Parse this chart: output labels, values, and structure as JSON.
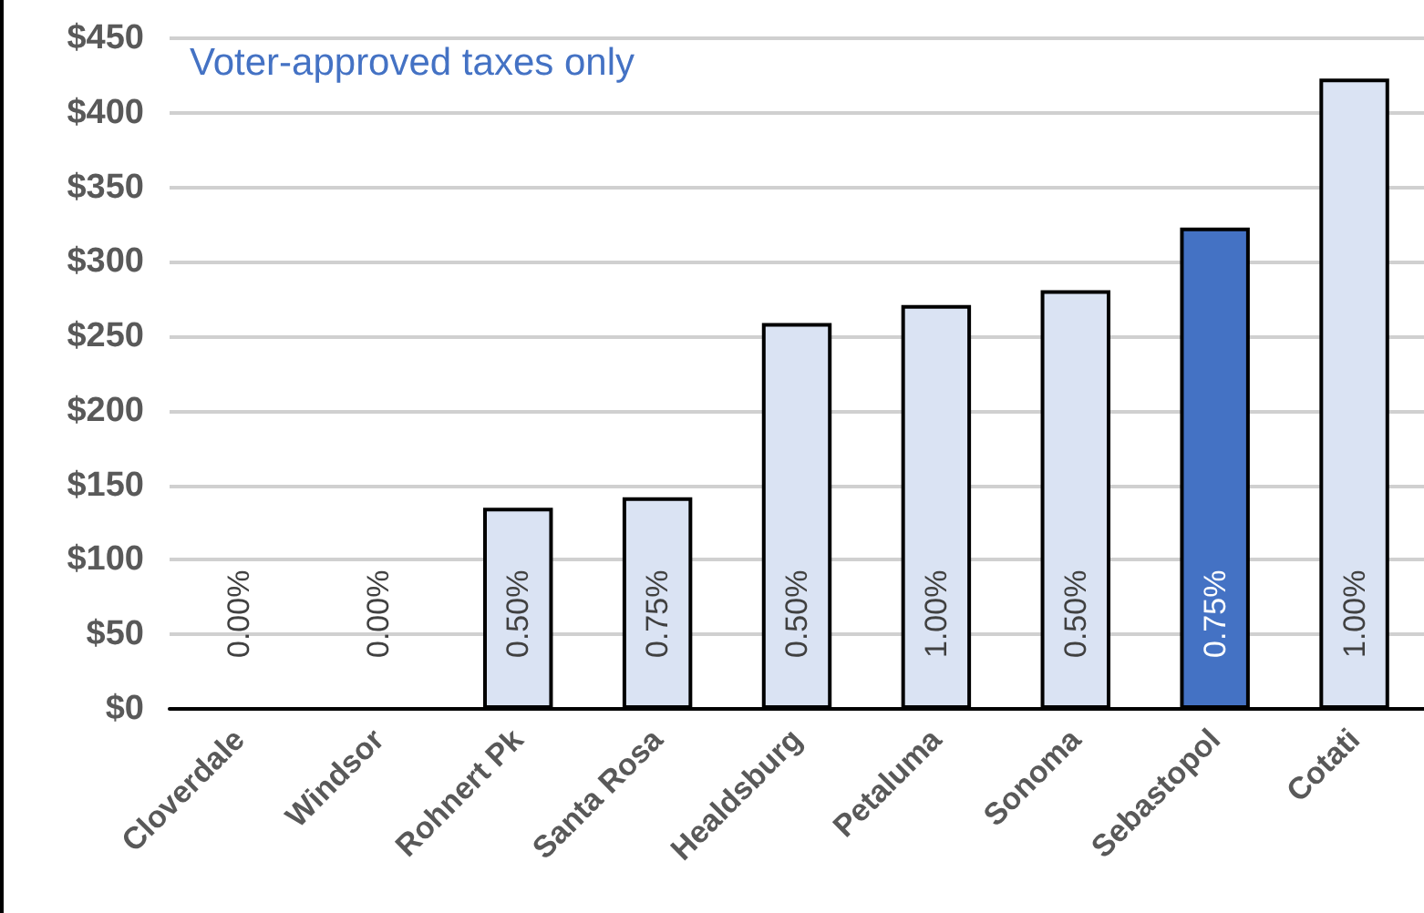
{
  "chart_data": {
    "type": "bar",
    "categories": [
      "Cloverdale",
      "Windsor",
      "Rohnert Pk",
      "Santa Rosa",
      "Healdsburg",
      "Petaluma",
      "Sonoma",
      "Sebastopol",
      "Cotati"
    ],
    "values": [
      0,
      0,
      135,
      142,
      259,
      271,
      281,
      323,
      423
    ],
    "colors": [
      "#dae3f3",
      "#dae3f3",
      "#dae3f3",
      "#dae3f3",
      "#dae3f3",
      "#dae3f3",
      "#dae3f3",
      "#4472c4",
      "#dae3f3"
    ],
    "ylim": [
      0,
      450
    ],
    "yticks": [
      {
        "value": 0,
        "label": "$0"
      },
      {
        "value": 50,
        "label": "$50"
      },
      {
        "value": 100,
        "label": "$100"
      },
      {
        "value": 150,
        "label": "$150"
      },
      {
        "value": 200,
        "label": "$200"
      },
      {
        "value": 250,
        "label": "$250"
      },
      {
        "value": 300,
        "label": "$300"
      },
      {
        "value": 350,
        "label": "$350"
      },
      {
        "value": 400,
        "label": "$400"
      },
      {
        "value": 450,
        "label": "$450"
      }
    ],
    "grid": "y",
    "annotations": [
      "Voter-approved taxes only",
      "0.00%",
      "0.00%",
      "0.50%",
      "0.75%",
      "0.50%",
      "1.00%",
      "0.50%",
      "0.75%",
      "1.00%"
    ]
  }
}
